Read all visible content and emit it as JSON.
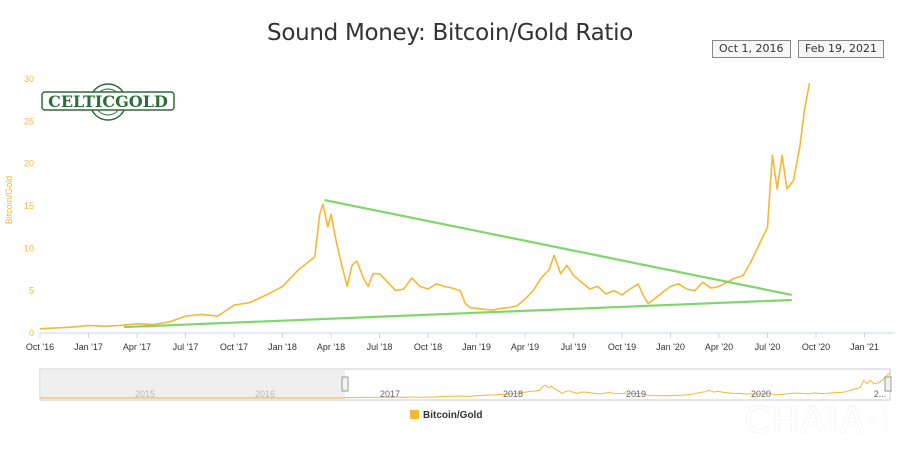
{
  "chart_data": {
    "type": "line",
    "title": "Sound Money: Bitcoin/Gold Ratio",
    "ylabel": "Bitcoin/Gold",
    "xlabel": "",
    "ylim": [
      0,
      32
    ],
    "yticks": [
      0,
      5,
      10,
      15,
      20,
      25,
      30
    ],
    "xticks": [
      "Oct '16",
      "Jan '17",
      "Apr '17",
      "Jul '17",
      "Oct '17",
      "Jan '18",
      "Apr '18",
      "Jul '18",
      "Oct '18",
      "Jan '19",
      "Apr '19",
      "Jul '19",
      "Oct '19",
      "Jan '20",
      "Apr '20",
      "Jul '20",
      "Oct '20",
      "Jan '21"
    ],
    "date_range": {
      "from": "Oct 1, 2016",
      "to": "Feb 19, 2021"
    },
    "series": [
      {
        "name": "Bitcoin/Gold",
        "color": "#f7b733",
        "points": [
          [
            0,
            0.5
          ],
          [
            1,
            0.6
          ],
          [
            2,
            0.7
          ],
          [
            3,
            0.9
          ],
          [
            4,
            0.8
          ],
          [
            5,
            0.9
          ],
          [
            6,
            1.1
          ],
          [
            7,
            1.0
          ],
          [
            8,
            1.3
          ],
          [
            9,
            2.0
          ],
          [
            10,
            2.2
          ],
          [
            11,
            2.0
          ],
          [
            12,
            3.3
          ],
          [
            13,
            3.6
          ],
          [
            14,
            4.5
          ],
          [
            15,
            5.5
          ],
          [
            16,
            7.5
          ],
          [
            17,
            9.0
          ],
          [
            17.3,
            14.0
          ],
          [
            17.5,
            15.2
          ],
          [
            17.8,
            12.5
          ],
          [
            18,
            14.0
          ],
          [
            18.3,
            11.0
          ],
          [
            18.6,
            8.5
          ],
          [
            19,
            5.5
          ],
          [
            19.3,
            8.0
          ],
          [
            19.6,
            8.5
          ],
          [
            20,
            6.5
          ],
          [
            20.3,
            5.5
          ],
          [
            20.6,
            7.0
          ],
          [
            21,
            7.0
          ],
          [
            21.5,
            6.0
          ],
          [
            22,
            5.0
          ],
          [
            22.5,
            5.2
          ],
          [
            23,
            6.5
          ],
          [
            23.5,
            5.5
          ],
          [
            24,
            5.2
          ],
          [
            24.5,
            5.8
          ],
          [
            25,
            5.5
          ],
          [
            25.5,
            5.3
          ],
          [
            26,
            5.0
          ],
          [
            26.3,
            3.5
          ],
          [
            26.6,
            3.0
          ],
          [
            27,
            2.9
          ],
          [
            27.5,
            2.8
          ],
          [
            28,
            2.7
          ],
          [
            28.5,
            2.9
          ],
          [
            29,
            3.0
          ],
          [
            29.5,
            3.2
          ],
          [
            30,
            4.0
          ],
          [
            30.5,
            5.0
          ],
          [
            31,
            6.5
          ],
          [
            31.5,
            7.5
          ],
          [
            31.8,
            9.2
          ],
          [
            32.2,
            7.0
          ],
          [
            32.6,
            8.0
          ],
          [
            33,
            6.8
          ],
          [
            33.5,
            6.0
          ],
          [
            34,
            5.2
          ],
          [
            34.5,
            5.5
          ],
          [
            35,
            4.6
          ],
          [
            35.5,
            5.0
          ],
          [
            36,
            4.5
          ],
          [
            36.5,
            5.2
          ],
          [
            37,
            5.8
          ],
          [
            37.3,
            4.5
          ],
          [
            37.6,
            3.5
          ],
          [
            38,
            4.0
          ],
          [
            38.5,
            4.8
          ],
          [
            39,
            5.5
          ],
          [
            39.5,
            5.8
          ],
          [
            40,
            5.2
          ],
          [
            40.5,
            5.0
          ],
          [
            41,
            6.0
          ],
          [
            41.5,
            5.3
          ],
          [
            42,
            5.5
          ],
          [
            42.5,
            6.0
          ],
          [
            43,
            6.5
          ],
          [
            43.5,
            6.8
          ],
          [
            44,
            8.5
          ],
          [
            44.5,
            10.5
          ],
          [
            45,
            12.5
          ],
          [
            45.3,
            21.0
          ],
          [
            45.6,
            17.0
          ],
          [
            45.9,
            21.0
          ],
          [
            46.2,
            17.0
          ],
          [
            46.6,
            18.0
          ],
          [
            47,
            22.0
          ],
          [
            47.3,
            26.5
          ],
          [
            47.6,
            29.5
          ]
        ]
      }
    ],
    "trendlines": [
      {
        "name": "upper",
        "color": "#7fd66a",
        "from": [
          17.6,
          15.7
        ],
        "to": [
          46.5,
          4.5
        ]
      },
      {
        "name": "lower",
        "color": "#7fd66a",
        "from": [
          5.2,
          0.7
        ],
        "to": [
          46.5,
          3.9
        ]
      }
    ],
    "navigator": {
      "labels": [
        "2015",
        "2016",
        "2017",
        "2018",
        "2019",
        "2020",
        "2..."
      ]
    },
    "legend": "Bitcoin/Gold"
  },
  "logo_text": "CELTICGOLD",
  "watermark": "CHAIA·i"
}
